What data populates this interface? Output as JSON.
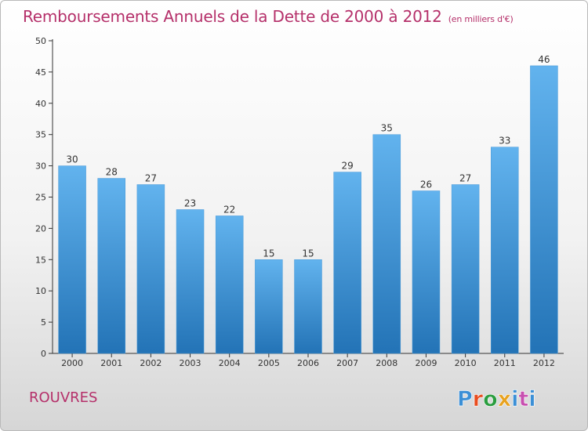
{
  "title": "Remboursements Annuels de la Dette de 2000 à 2012",
  "subtitle": "(en milliers d'€)",
  "commune": "ROUVRES",
  "logo": {
    "text": "Proxiti",
    "colors": [
      "#3b8fd6",
      "#e84c1e",
      "#2a9d3f",
      "#e8a21e",
      "#3b8fd6",
      "#c84fb0",
      "#3b8fd6"
    ]
  },
  "colors": {
    "title": "#b5306a",
    "bar_top": "#62b3ee",
    "bar_bottom": "#2373b6"
  },
  "chart_data": {
    "type": "bar",
    "title": "Remboursements Annuels de la Dette de 2000 à 2012",
    "xlabel": "",
    "ylabel": "",
    "categories": [
      "2000",
      "2001",
      "2002",
      "2003",
      "2004",
      "2005",
      "2006",
      "2007",
      "2008",
      "2009",
      "2010",
      "2011",
      "2012"
    ],
    "values": [
      30,
      28,
      27,
      23,
      22,
      15,
      15,
      29,
      35,
      26,
      27,
      33,
      46
    ],
    "ylim": [
      0,
      50
    ],
    "yticks": [
      0,
      5,
      10,
      15,
      20,
      25,
      30,
      35,
      40,
      45,
      50
    ],
    "grid": false,
    "data_labels": true
  }
}
